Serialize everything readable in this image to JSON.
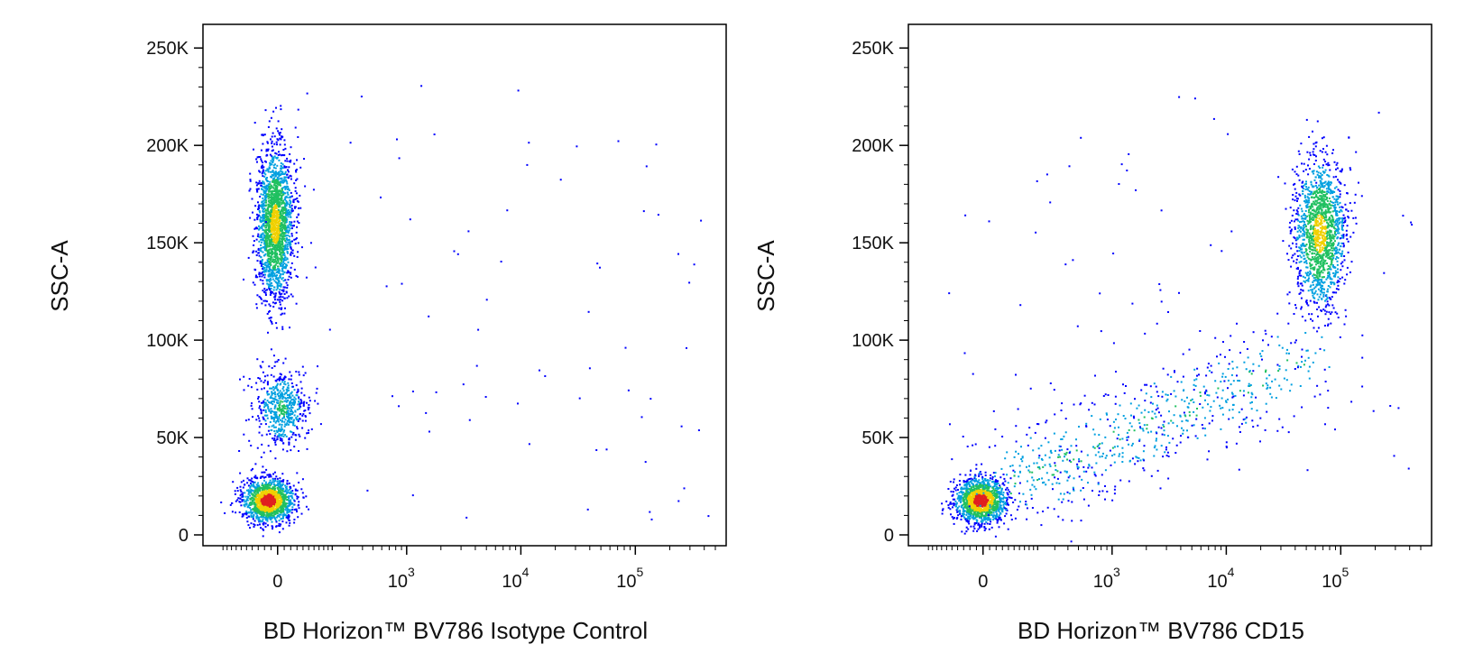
{
  "chart_data": [
    {
      "type": "scatter",
      "style": "density-colored dot plot",
      "xlabel": "BD Horizon™ BV786 Isotype Control",
      "ylabel": "SSC-A",
      "x_scale": "biexponential",
      "x_ticks": [
        {
          "value": 0,
          "base": "0",
          "exp": ""
        },
        {
          "value": 1000,
          "base": "10",
          "exp": "3"
        },
        {
          "value": 10000,
          "base": "10",
          "exp": "4"
        },
        {
          "value": 100000,
          "base": "10",
          "exp": "5"
        }
      ],
      "y_ticks": [
        {
          "value": 0,
          "label": "0"
        },
        {
          "value": 50000,
          "label": "50K"
        },
        {
          "value": 100000,
          "label": "100K"
        },
        {
          "value": 150000,
          "label": "150K"
        },
        {
          "value": 200000,
          "label": "200K"
        },
        {
          "value": 250000,
          "label": "250K"
        }
      ],
      "ylim": [
        0,
        262144
      ],
      "populations": [
        {
          "name": "",
          "x_center": -30,
          "y_center": 18000,
          "n_events": 1400,
          "description_density": "highest"
        },
        {
          "name": "",
          "x_center": 10,
          "y_center": 65000,
          "n_events": 550,
          "description_density": "low"
        },
        {
          "name": "",
          "x_center": -10,
          "y_center": 160000,
          "n_events": 1900,
          "description_density": "medium"
        }
      ]
    },
    {
      "type": "scatter",
      "style": "density-colored dot plot",
      "xlabel": "BD Horizon™ BV786 CD15",
      "ylabel": "SSC-A",
      "x_scale": "biexponential",
      "x_ticks": [
        {
          "value": 0,
          "base": "0",
          "exp": ""
        },
        {
          "value": 1000,
          "base": "10",
          "exp": "3"
        },
        {
          "value": 10000,
          "base": "10",
          "exp": "4"
        },
        {
          "value": 100000,
          "base": "10",
          "exp": "5"
        }
      ],
      "y_ticks": [
        {
          "value": 0,
          "label": "0"
        },
        {
          "value": 50000,
          "label": "50K"
        },
        {
          "value": 100000,
          "label": "100K"
        },
        {
          "value": 150000,
          "label": "150K"
        },
        {
          "value": 200000,
          "label": "200K"
        },
        {
          "value": 250000,
          "label": "250K"
        }
      ],
      "ylim": [
        0,
        262144
      ],
      "populations": [
        {
          "name": "",
          "x_center": -10,
          "y_center": 18000,
          "n_events": 1400,
          "description_density": "highest"
        },
        {
          "name": "",
          "x_center": 150,
          "y_center": 60000,
          "n_events": 700,
          "description_density": "low"
        },
        {
          "name": "",
          "x_center": 65000,
          "y_center": 155000,
          "n_events": 1500,
          "description_density": "medium"
        }
      ]
    }
  ],
  "colors": {
    "sparse": "#0000ff",
    "low": "#00a0e0",
    "medium": "#20c060",
    "high": "#f0d000",
    "highest": "#e02020"
  }
}
